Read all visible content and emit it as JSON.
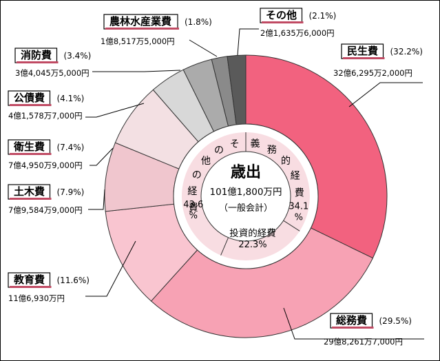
{
  "chart_data": {
    "type": "pie",
    "style": "donut",
    "center": {
      "title": "歳出",
      "total": "101億1,800万円",
      "subtitle": "（一般会計）"
    },
    "inner_ring": [
      {
        "label": "義務的経費",
        "percent": "34.1%",
        "value": 34.1
      },
      {
        "label": "投資的経費",
        "percent": "22.3%",
        "value": 22.3
      },
      {
        "label": "その他の経費",
        "percent": "43.6%",
        "value": 43.6
      }
    ],
    "slices": [
      {
        "name": "民生費",
        "percent": "(32.2%)",
        "value": 32.2,
        "amount": "32億6,295万2,000円",
        "color": "#f2627f"
      },
      {
        "name": "総務費",
        "percent": "(29.5%)",
        "value": 29.5,
        "amount": "29億8,261万7,000円",
        "color": "#f7a2b4"
      },
      {
        "name": "教育費",
        "percent": "(11.6%)",
        "value": 11.6,
        "amount": "11億6,930万円",
        "color": "#f9c5d0"
      },
      {
        "name": "土木費",
        "percent": "(7.9%)",
        "value": 7.9,
        "amount": "7億9,584万9,000円",
        "color": "#f0c6ce"
      },
      {
        "name": "衛生費",
        "percent": "(7.4%)",
        "value": 7.4,
        "amount": "7億4,950万9,000円",
        "color": "#f3e0e3"
      },
      {
        "name": "公債費",
        "percent": "(4.1%)",
        "value": 4.1,
        "amount": "4億1,578万7,000円",
        "color": "#d8d8d8"
      },
      {
        "name": "消防費",
        "percent": "(3.4%)",
        "value": 3.4,
        "amount": "3億4,045万5,000円",
        "color": "#ababab"
      },
      {
        "name": "農林水産業費",
        "percent": "(1.8%)",
        "value": 1.8,
        "amount": "1億8,517万5,000円",
        "color": "#8a8a8a"
      },
      {
        "name": "その他",
        "percent": "(2.1%)",
        "value": 2.1,
        "amount": "2億1,635万6,000円",
        "color": "#5a5a5a"
      }
    ]
  }
}
